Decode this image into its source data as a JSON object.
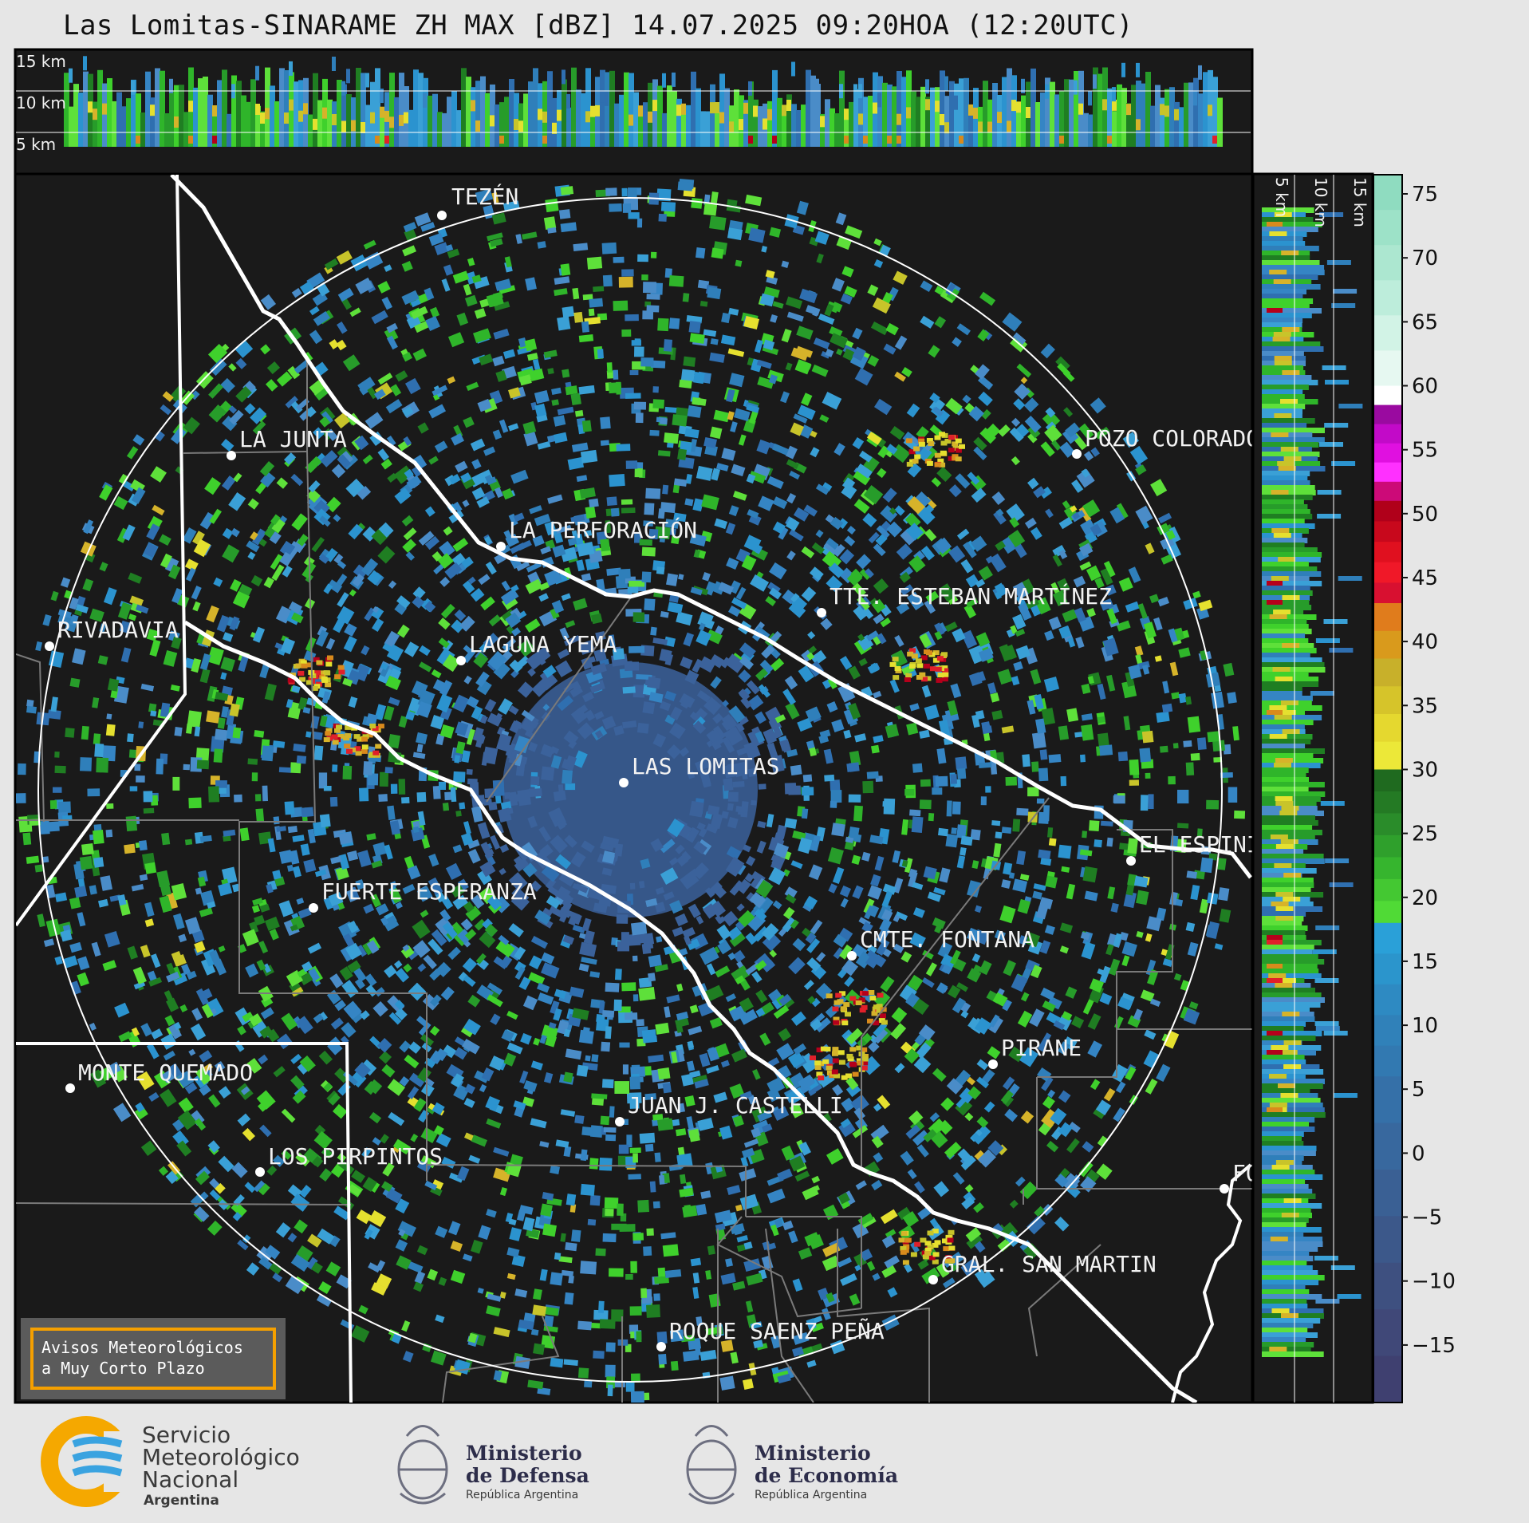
{
  "title": "Las Lomitas-SINARAME ZH MAX [dBZ] 14.07.2025 09:20HOA (12:20UTC)",
  "altitude_labels_top": [
    "15 km",
    "10 km",
    "5 km"
  ],
  "altitude_labels_side": [
    "5 km",
    "10 km",
    "15 km"
  ],
  "cities": [
    {
      "name": "TEZÉN"
    },
    {
      "name": "LA JUNTA"
    },
    {
      "name": "POZO COLORADO"
    },
    {
      "name": "LA PERFORACIÓN"
    },
    {
      "name": "TTE. ESTEBAN MARTÍNEZ"
    },
    {
      "name": "RIVADAVIA"
    },
    {
      "name": "LAGUNA YEMA"
    },
    {
      "name": "LAS LOMITAS"
    },
    {
      "name": "EL ESPINILLO"
    },
    {
      "name": "FUERTE ESPERANZA"
    },
    {
      "name": "CMTE. FONTANA"
    },
    {
      "name": "PIRANE"
    },
    {
      "name": "MONTE QUEMADO"
    },
    {
      "name": "JUAN J. CASTELLI"
    },
    {
      "name": "LOS PIRPINTOS"
    },
    {
      "name": "GRAL. SAN MARTIN"
    },
    {
      "name": "ROQUE SAENZ PEÑA"
    },
    {
      "name": "FO"
    }
  ],
  "colorbar": {
    "unit": "dBZ",
    "ticks": [
      "75",
      "70",
      "65",
      "60",
      "55",
      "50",
      "45",
      "40",
      "35",
      "30",
      "25",
      "20",
      "15",
      "10",
      "5",
      "0",
      "−5",
      "−10",
      "−15"
    ]
  },
  "avisos": {
    "line1": "Avisos Meteorológicos",
    "line2": "a Muy Corto Plazo"
  },
  "logos": {
    "smn": {
      "line1": "Servicio",
      "line2": "Meteorológico",
      "line3": "Nacional",
      "line4": "Argentina"
    },
    "defensa": {
      "line1": "Ministerio",
      "line2": "de Defensa",
      "line3": "República Argentina"
    },
    "economia": {
      "line1": "Ministerio",
      "line2": "de Economía",
      "line3": "República Argentina"
    }
  },
  "colors": {
    "map_bg": "#1a1a1a",
    "range_ring": "#ffffff",
    "avisos_border": "#f5a000"
  }
}
